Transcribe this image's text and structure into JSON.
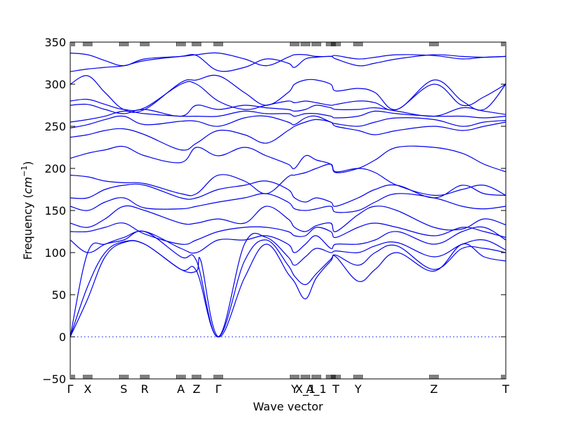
{
  "chart_data": {
    "type": "line",
    "title": "",
    "xlabel": "Wave vector",
    "ylabel": "Frequency",
    "ylabel_unit": "cm",
    "ylabel_unit_power": "−1",
    "xlim": [
      0,
      1
    ],
    "ylim": [
      -50,
      350
    ],
    "y_ticks": [
      -50,
      0,
      50,
      100,
      150,
      200,
      250,
      300,
      350
    ],
    "y_tick_labels": [
      "−50",
      "0",
      "50",
      "100",
      "150",
      "200",
      "250",
      "300",
      "350"
    ],
    "x_tick_positions": [
      0.0,
      0.04,
      0.123,
      0.171,
      0.254,
      0.29,
      0.34,
      0.515,
      0.54,
      0.565,
      0.598,
      0.61,
      0.661,
      0.835,
      1.0
    ],
    "x_tick_labels": [
      {
        "label": "Γ",
        "x": 0.0
      },
      {
        "label": "X",
        "x": 0.04
      },
      {
        "label": "S",
        "x": 0.123
      },
      {
        "label": "R",
        "x": 0.171
      },
      {
        "label": "A",
        "x": 0.254
      },
      {
        "label": "Z",
        "x": 0.29
      },
      {
        "label": "Γ",
        "x": 0.34
      },
      {
        "label": "Y",
        "x": 0.515
      },
      {
        "label": "X_1",
        "x": 0.54
      },
      {
        "label": "A_1",
        "x": 0.565
      },
      {
        "label": "T",
        "x": 0.61
      },
      {
        "label": "Y",
        "x": 0.661
      },
      {
        "label": "Z",
        "x": 0.835
      },
      {
        "label": "T",
        "x": 1.0
      }
    ],
    "zero_line": 0,
    "grid": false,
    "legend": "none",
    "color": "#0000ee",
    "series": [
      {
        "x": [
          0,
          0.04,
          0.08,
          0.123,
          0.171,
          0.254,
          0.29,
          0.3,
          0.34,
          0.4,
          0.45,
          0.5,
          0.515,
          0.54,
          0.565,
          0.598,
          0.61,
          0.661,
          0.7,
          0.75,
          0.835,
          0.9,
          0.95,
          1
        ],
        "y": [
          0,
          60,
          100,
          113,
          110,
          80,
          78,
          90,
          0,
          70,
          110,
          75,
          65,
          45,
          70,
          90,
          95,
          66,
          80,
          100,
          78,
          110,
          95,
          90
        ]
      },
      {
        "x": [
          0,
          0.04,
          0.08,
          0.123,
          0.171,
          0.254,
          0.29,
          0.34,
          0.4,
          0.45,
          0.5,
          0.515,
          0.54,
          0.565,
          0.598,
          0.61,
          0.661,
          0.7,
          0.75,
          0.835,
          0.9,
          0.95,
          1
        ],
        "y": [
          0,
          45,
          95,
          112,
          110,
          80,
          78,
          0,
          90,
          115,
          85,
          72,
          62,
          75,
          92,
          97,
          85,
          100,
          108,
          80,
          105,
          105,
          100
        ]
      },
      {
        "x": [
          0,
          0.04,
          0.08,
          0.123,
          0.171,
          0.254,
          0.29,
          0.34,
          0.4,
          0.45,
          0.5,
          0.515,
          0.54,
          0.565,
          0.598,
          0.61,
          0.661,
          0.7,
          0.75,
          0.835,
          0.9,
          0.95,
          1
        ],
        "y": [
          0,
          100,
          110,
          115,
          125,
          95,
          90,
          0,
          110,
          118,
          95,
          85,
          95,
          105,
          100,
          102,
          100,
          108,
          112,
          95,
          110,
          115,
          103
        ]
      },
      {
        "x": [
          0,
          0.04,
          0.08,
          0.123,
          0.171,
          0.254,
          0.29,
          0.34,
          0.4,
          0.45,
          0.5,
          0.515,
          0.54,
          0.565,
          0.598,
          0.61,
          0.661,
          0.7,
          0.75,
          0.835,
          0.9,
          0.95,
          1
        ],
        "y": [
          115,
          100,
          110,
          118,
          125,
          105,
          100,
          115,
          115,
          120,
          110,
          100,
          110,
          120,
          105,
          110,
          110,
          115,
          125,
          110,
          125,
          130,
          115
        ]
      },
      {
        "x": [
          0,
          0.04,
          0.08,
          0.123,
          0.171,
          0.254,
          0.29,
          0.34,
          0.4,
          0.45,
          0.5,
          0.515,
          0.54,
          0.565,
          0.598,
          0.61,
          0.661,
          0.7,
          0.75,
          0.835,
          0.9,
          0.95,
          1
        ],
        "y": [
          125,
          125,
          130,
          135,
          122,
          110,
          115,
          125,
          130,
          130,
          125,
          120,
          120,
          130,
          125,
          118,
          130,
          135,
          130,
          120,
          130,
          125,
          118
        ]
      },
      {
        "x": [
          0,
          0.04,
          0.08,
          0.123,
          0.171,
          0.254,
          0.29,
          0.34,
          0.4,
          0.45,
          0.5,
          0.515,
          0.54,
          0.565,
          0.598,
          0.61,
          0.661,
          0.7,
          0.75,
          0.835,
          0.9,
          0.95,
          1
        ],
        "y": [
          135,
          130,
          140,
          155,
          150,
          135,
          135,
          140,
          135,
          155,
          140,
          130,
          125,
          132,
          135,
          125,
          145,
          155,
          150,
          130,
          128,
          140,
          133
        ]
      },
      {
        "x": [
          0,
          0.04,
          0.08,
          0.123,
          0.171,
          0.254,
          0.29,
          0.34,
          0.4,
          0.45,
          0.5,
          0.515,
          0.54,
          0.565,
          0.598,
          0.61,
          0.661,
          0.7,
          0.75,
          0.835,
          0.9,
          0.95,
          1
        ],
        "y": [
          155,
          150,
          160,
          165,
          153,
          152,
          155,
          160,
          165,
          170,
          160,
          152,
          150,
          152,
          155,
          148,
          150,
          160,
          170,
          165,
          155,
          152,
          155
        ]
      },
      {
        "x": [
          0,
          0.04,
          0.08,
          0.123,
          0.171,
          0.254,
          0.29,
          0.34,
          0.4,
          0.45,
          0.5,
          0.515,
          0.54,
          0.565,
          0.598,
          0.61,
          0.661,
          0.7,
          0.75,
          0.835,
          0.9,
          0.95,
          1
        ],
        "y": [
          165,
          165,
          175,
          180,
          180,
          165,
          165,
          175,
          180,
          185,
          175,
          165,
          160,
          165,
          160,
          155,
          165,
          175,
          180,
          165,
          180,
          170,
          168
        ]
      },
      {
        "x": [
          0,
          0.04,
          0.08,
          0.123,
          0.171,
          0.254,
          0.29,
          0.34,
          0.4,
          0.45,
          0.5,
          0.515,
          0.54,
          0.565,
          0.598,
          0.61,
          0.661,
          0.7,
          0.75,
          0.835,
          0.9,
          0.95,
          1
        ],
        "y": [
          192,
          190,
          185,
          183,
          182,
          170,
          170,
          192,
          185,
          170,
          190,
          192,
          195,
          200,
          205,
          196,
          200,
          195,
          180,
          168,
          175,
          180,
          168
        ]
      },
      {
        "x": [
          0,
          0.04,
          0.08,
          0.123,
          0.171,
          0.254,
          0.29,
          0.34,
          0.4,
          0.45,
          0.5,
          0.515,
          0.54,
          0.565,
          0.598,
          0.61,
          0.661,
          0.7,
          0.75,
          0.835,
          0.9,
          0.95,
          1
        ],
        "y": [
          212,
          218,
          222,
          226,
          215,
          207,
          225,
          215,
          225,
          215,
          205,
          200,
          215,
          210,
          205,
          195,
          200,
          210,
          225,
          225,
          218,
          205,
          196
        ]
      },
      {
        "x": [
          0,
          0.04,
          0.08,
          0.123,
          0.171,
          0.254,
          0.29,
          0.34,
          0.4,
          0.45,
          0.5,
          0.515,
          0.54,
          0.565,
          0.598,
          0.61,
          0.661,
          0.7,
          0.75,
          0.835,
          0.9,
          0.95,
          1
        ],
        "y": [
          237,
          240,
          245,
          247,
          240,
          222,
          230,
          245,
          240,
          230,
          245,
          250,
          255,
          258,
          255,
          250,
          245,
          240,
          245,
          250,
          245,
          250,
          255
        ]
      },
      {
        "x": [
          0,
          0.04,
          0.08,
          0.123,
          0.171,
          0.254,
          0.29,
          0.34,
          0.4,
          0.45,
          0.5,
          0.515,
          0.54,
          0.565,
          0.598,
          0.61,
          0.661,
          0.7,
          0.75,
          0.835,
          0.9,
          0.95,
          1
        ],
        "y": [
          248,
          252,
          258,
          262,
          252,
          256,
          256,
          250,
          260,
          262,
          255,
          252,
          260,
          262,
          255,
          253,
          250,
          255,
          260,
          258,
          250,
          255,
          257
        ]
      },
      {
        "x": [
          0,
          0.04,
          0.08,
          0.123,
          0.171,
          0.254,
          0.29,
          0.34,
          0.4,
          0.45,
          0.5,
          0.515,
          0.54,
          0.565,
          0.598,
          0.61,
          0.661,
          0.7,
          0.75,
          0.835,
          0.9,
          0.95,
          1
        ],
        "y": [
          255,
          258,
          262,
          268,
          265,
          262,
          262,
          262,
          268,
          265,
          265,
          262,
          265,
          265,
          262,
          260,
          262,
          268,
          265,
          262,
          262,
          260,
          262
        ]
      },
      {
        "x": [
          0,
          0.04,
          0.08,
          0.123,
          0.171,
          0.254,
          0.29,
          0.34,
          0.4,
          0.45,
          0.5,
          0.515,
          0.54,
          0.565,
          0.598,
          0.61,
          0.661,
          0.7,
          0.75,
          0.835,
          0.9,
          0.95,
          1
        ],
        "y": [
          275,
          276,
          270,
          265,
          270,
          262,
          275,
          270,
          275,
          272,
          270,
          268,
          270,
          275,
          272,
          270,
          270,
          272,
          268,
          262,
          272,
          268,
          264
        ]
      },
      {
        "x": [
          0,
          0.04,
          0.08,
          0.123,
          0.171,
          0.254,
          0.29,
          0.34,
          0.4,
          0.45,
          0.5,
          0.515,
          0.54,
          0.565,
          0.598,
          0.61,
          0.661,
          0.7,
          0.75,
          0.835,
          0.9,
          0.95,
          1
        ],
        "y": [
          280,
          282,
          276,
          270,
          272,
          300,
          300,
          280,
          270,
          275,
          280,
          278,
          280,
          278,
          275,
          276,
          280,
          278,
          270,
          300,
          275,
          285,
          300
        ]
      },
      {
        "x": [
          0,
          0.04,
          0.08,
          0.123,
          0.171,
          0.254,
          0.29,
          0.34,
          0.4,
          0.45,
          0.5,
          0.515,
          0.54,
          0.565,
          0.598,
          0.61,
          0.661,
          0.7,
          0.75,
          0.835,
          0.9,
          0.95,
          1
        ],
        "y": [
          300,
          310,
          290,
          270,
          270,
          302,
          305,
          310,
          290,
          275,
          290,
          300,
          305,
          305,
          300,
          292,
          295,
          290,
          270,
          305,
          280,
          270,
          300
        ]
      },
      {
        "x": [
          0,
          0.04,
          0.08,
          0.123,
          0.171,
          0.254,
          0.29,
          0.34,
          0.4,
          0.45,
          0.5,
          0.515,
          0.54,
          0.565,
          0.598,
          0.61,
          0.661,
          0.7,
          0.75,
          0.835,
          0.9,
          0.95,
          1
        ],
        "y": [
          315,
          318,
          320,
          322,
          328,
          333,
          334,
          316,
          320,
          330,
          325,
          320,
          330,
          332,
          333,
          330,
          322,
          325,
          330,
          335,
          333,
          332,
          333
        ]
      },
      {
        "x": [
          0,
          0.04,
          0.08,
          0.123,
          0.171,
          0.254,
          0.29,
          0.34,
          0.4,
          0.45,
          0.5,
          0.515,
          0.54,
          0.565,
          0.598,
          0.61,
          0.661,
          0.7,
          0.75,
          0.835,
          0.9,
          0.95,
          1
        ],
        "y": [
          337,
          335,
          328,
          322,
          330,
          333,
          335,
          337,
          330,
          322,
          332,
          335,
          335,
          333,
          333,
          334,
          330,
          332,
          335,
          334,
          330,
          332,
          333
        ]
      }
    ]
  }
}
